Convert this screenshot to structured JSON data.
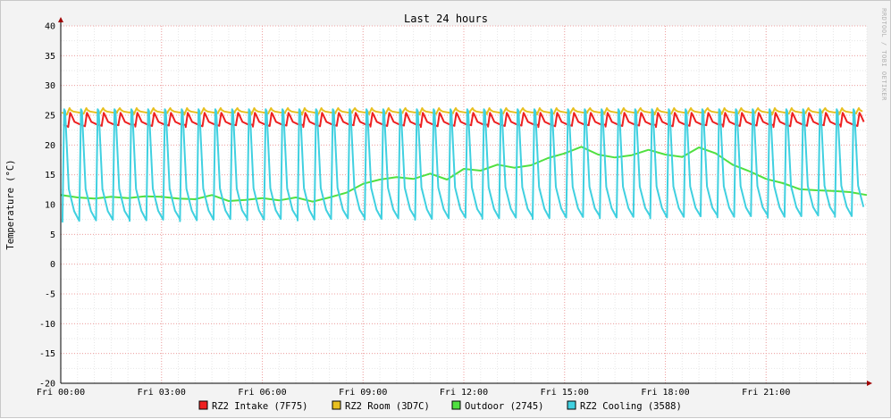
{
  "watermark": "RRDTOOL / TOBI OETIKER",
  "chart_data": {
    "type": "line",
    "title": "Last 24 hours",
    "ylabel": "Temperature (°C)",
    "xlabel": "",
    "ylim": [
      -20,
      40
    ],
    "yticks": [
      40,
      35,
      30,
      25,
      20,
      15,
      10,
      5,
      0,
      -5,
      -10,
      -15,
      -20
    ],
    "xlim_hours": [
      0,
      24
    ],
    "xticks": [
      {
        "hour": 0,
        "label": "Fri 00:00"
      },
      {
        "hour": 3,
        "label": "Fri 03:00"
      },
      {
        "hour": 6,
        "label": "Fri 06:00"
      },
      {
        "hour": 9,
        "label": "Fri 09:00"
      },
      {
        "hour": 12,
        "label": "Fri 12:00"
      },
      {
        "hour": 15,
        "label": "Fri 15:00"
      },
      {
        "hour": 18,
        "label": "Fri 18:00"
      },
      {
        "hour": 21,
        "label": "Fri 21:00"
      }
    ],
    "grid": true,
    "legend_position": "bottom",
    "series": [
      {
        "name": "RZ2 Intake (7F75)",
        "color": "#ee2020",
        "pattern": {
          "period_h": 0.5,
          "phase_h": 0.22,
          "base": 23.3,
          "peak": 25.4,
          "rise": 0.06
        }
      },
      {
        "name": "RZ2 Room (3D7C)",
        "color": "#e8c020",
        "pattern": {
          "period_h": 0.5,
          "phase_h": 0.18,
          "base": 25.4,
          "peak": 26.2,
          "rise": 0.08
        }
      },
      {
        "name": "Outdoor (2745)",
        "color": "#50e040",
        "x": [
          0,
          0.5,
          1,
          1.5,
          2,
          2.5,
          3,
          3.5,
          4,
          4.5,
          5,
          5.5,
          6,
          6.5,
          7,
          7.5,
          8,
          8.5,
          9,
          9.5,
          10,
          10.5,
          11,
          11.5,
          12,
          12.5,
          13,
          13.5,
          14,
          14.5,
          15,
          15.5,
          16,
          16.5,
          17,
          17.5,
          18,
          18.5,
          19,
          19.5,
          20,
          20.5,
          21,
          21.5,
          22,
          22.5,
          23,
          23.5,
          24
        ],
        "values": [
          11.6,
          11.2,
          11.0,
          11.3,
          11.1,
          11.4,
          11.3,
          11.0,
          10.9,
          11.6,
          10.6,
          10.8,
          11.1,
          10.7,
          11.2,
          10.5,
          11.2,
          12.0,
          13.5,
          14.2,
          14.6,
          14.3,
          15.2,
          14.2,
          16.0,
          15.7,
          16.7,
          16.2,
          16.6,
          17.8,
          18.6,
          19.7,
          18.4,
          17.9,
          18.3,
          19.2,
          18.4,
          18.0,
          19.6,
          18.6,
          16.7,
          15.6,
          14.3,
          13.6,
          12.6,
          12.4,
          12.3,
          12.1,
          11.6
        ]
      },
      {
        "name": "RZ2 Cooling (3588)",
        "color": "#40d0e0",
        "pattern": {
          "period_h": 0.5,
          "phase_h": 0.05,
          "base_start": 7.4,
          "base_end": 8.2,
          "peak": 26.0,
          "rise": 0.05
        }
      }
    ]
  }
}
